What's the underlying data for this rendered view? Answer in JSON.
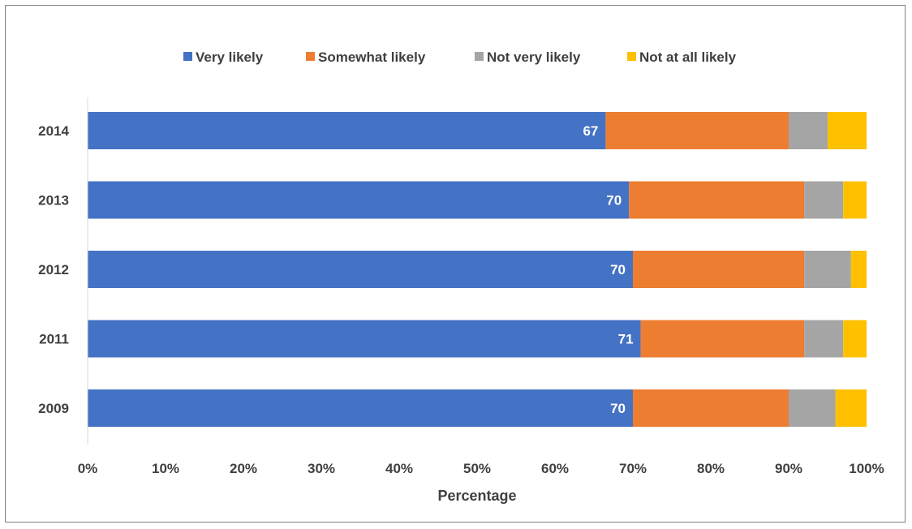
{
  "chart_data": {
    "type": "bar",
    "orientation": "horizontal",
    "stacked": "percent",
    "categories": [
      "2014",
      "2013",
      "2012",
      "2011",
      "2009"
    ],
    "series": [
      {
        "name": "Very likely",
        "color": "#4472C4",
        "values": [
          66.5,
          69.5,
          70,
          71,
          70
        ],
        "labels": [
          "67",
          "70",
          "70",
          "71",
          "70"
        ]
      },
      {
        "name": "Somewhat likely",
        "color": "#ED7D31",
        "values": [
          23.5,
          22.5,
          22,
          21,
          20
        ],
        "labels": []
      },
      {
        "name": "Not very likely",
        "color": "#A5A5A5",
        "values": [
          5,
          5,
          6,
          5,
          6
        ],
        "labels": []
      },
      {
        "name": "Not at all likely",
        "color": "#FFC000",
        "values": [
          5,
          3,
          2,
          3,
          4
        ],
        "labels": []
      }
    ],
    "xlabel": "Percentage",
    "ylabel": "",
    "xlim": [
      0,
      100
    ],
    "x_ticks": [
      "0%",
      "10%",
      "20%",
      "30%",
      "40%",
      "50%",
      "60%",
      "70%",
      "80%",
      "90%",
      "100%"
    ],
    "legend_position": "top",
    "grid": false
  }
}
